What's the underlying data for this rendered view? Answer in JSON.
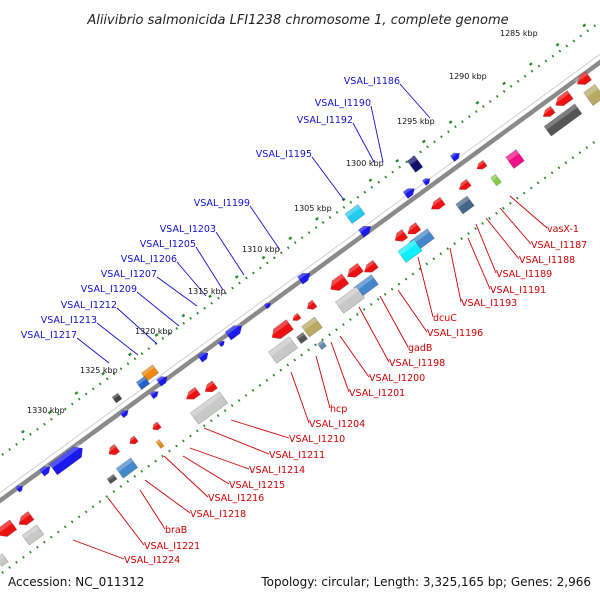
{
  "title": "Aliivibrio salmonicida LFI1238 chromosome 1, complete genome",
  "footer": {
    "accession": "Accession: NC_011312",
    "summary": "Topology: circular; Length: 3,325,165 bp; Genes: 2,966"
  },
  "colors": {
    "background": "#ffffff",
    "upper_label": "#1010cc",
    "lower_label": "#cc0000",
    "forward_gene": "#1a1aee",
    "reverse_gene": "#ee1111",
    "tick_dots": "#2a8a2a",
    "backbone": "#888888"
  },
  "scale_ticks": [
    "1285 kbp",
    "1290 kbp",
    "1295 kbp",
    "1300 kbp",
    "1305 kbp",
    "1310 kbp",
    "1315 kbp",
    "1320 kbp",
    "1325 kbp",
    "1330 kbp"
  ],
  "upper_labels": [
    "VSAL_I1186",
    "VSAL_I1190",
    "VSAL_I1192",
    "VSAL_I1195",
    "VSAL_I1199",
    "VSAL_I1203",
    "VSAL_I1205",
    "VSAL_I1206",
    "VSAL_I1207",
    "VSAL_I1209",
    "VSAL_I1212",
    "VSAL_I1213",
    "VSAL_I1217"
  ],
  "lower_labels": [
    "vasX-1",
    "VSAL_I1187",
    "VSAL_I1188",
    "VSAL_I1189",
    "VSAL_I1191",
    "VSAL_I1193",
    "dcuC",
    "VSAL_I1196",
    "gadB",
    "VSAL_I1198",
    "VSAL_I1200",
    "VSAL_I1201",
    "hcp",
    "VSAL_I1204",
    "VSAL_I1210",
    "VSAL_I1211",
    "VSAL_I1214",
    "VSAL_I1215",
    "VSAL_I1216",
    "VSAL_I1218",
    "braB",
    "VSAL_I1221",
    "VSAL_I1224"
  ]
}
